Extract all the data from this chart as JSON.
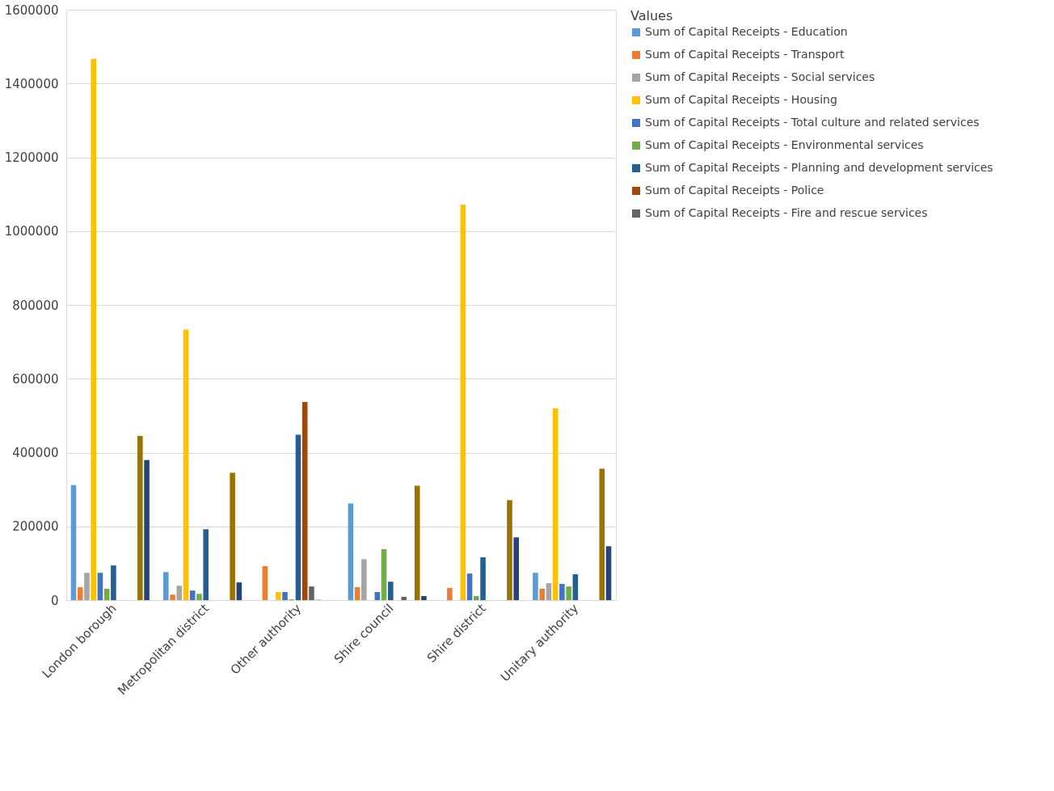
{
  "chart_data": {
    "type": "bar",
    "legend_title": "Values",
    "legend": "right",
    "grid": "y",
    "categories": [
      "London borough",
      "Metropolitan district",
      "Other authority",
      "Shire council",
      "Shire district",
      "Unitary authority"
    ],
    "ylim": [
      0,
      1600000
    ],
    "yticks": [
      0,
      200000,
      400000,
      600000,
      800000,
      1000000,
      1200000,
      1400000,
      1600000
    ],
    "series": [
      {
        "name": "Sum of Capital Receipts - Education",
        "color": "#5b9bd5",
        "values": [
          312000,
          76000,
          0,
          262000,
          0,
          74000
        ]
      },
      {
        "name": "Sum of Capital Receipts - Transport",
        "color": "#ed7d31",
        "values": [
          35000,
          15000,
          92000,
          35000,
          33000,
          31000
        ]
      },
      {
        "name": "Sum of Capital Receipts - Social services",
        "color": "#a5a5a5",
        "values": [
          74000,
          39000,
          0,
          111000,
          0,
          46000
        ]
      },
      {
        "name": "Sum of Capital Receipts - Housing",
        "color": "#ffc000",
        "values": [
          1467000,
          733000,
          22000,
          null,
          1072000,
          520000
        ]
      },
      {
        "name": "Sum of Capital Receipts - Total culture and related services",
        "color": "#4472c4",
        "values": [
          74000,
          26000,
          22000,
          22000,
          72000,
          44000
        ]
      },
      {
        "name": "Sum of Capital Receipts - Environmental services",
        "color": "#70ad47",
        "values": [
          31000,
          17000,
          2000,
          138000,
          11000,
          37000
        ]
      },
      {
        "name": "Sum of Capital Receipts - Planning and development services",
        "color": "#255e91",
        "values": [
          94000,
          192000,
          448000,
          50000,
          116000,
          70000
        ]
      },
      {
        "name": "Sum of Capital Receipts - Police",
        "color": "#9e480e",
        "values": [
          0,
          0,
          537000,
          0,
          0,
          0
        ]
      },
      {
        "name": "Sum of Capital Receipts - Fire and rescue services",
        "color": "#636363",
        "values": [
          0,
          0,
          37000,
          9000,
          0,
          0
        ]
      },
      {
        "color": "#d4b978",
        "values": [
          0,
          0,
          2000,
          0,
          0,
          0
        ]
      },
      {
        "color": "#997300",
        "values": [
          445000,
          345000,
          0,
          310000,
          271000,
          356000
        ]
      },
      {
        "color": "#264478",
        "values": [
          380000,
          48000,
          0,
          11000,
          170000,
          146000
        ]
      }
    ]
  }
}
